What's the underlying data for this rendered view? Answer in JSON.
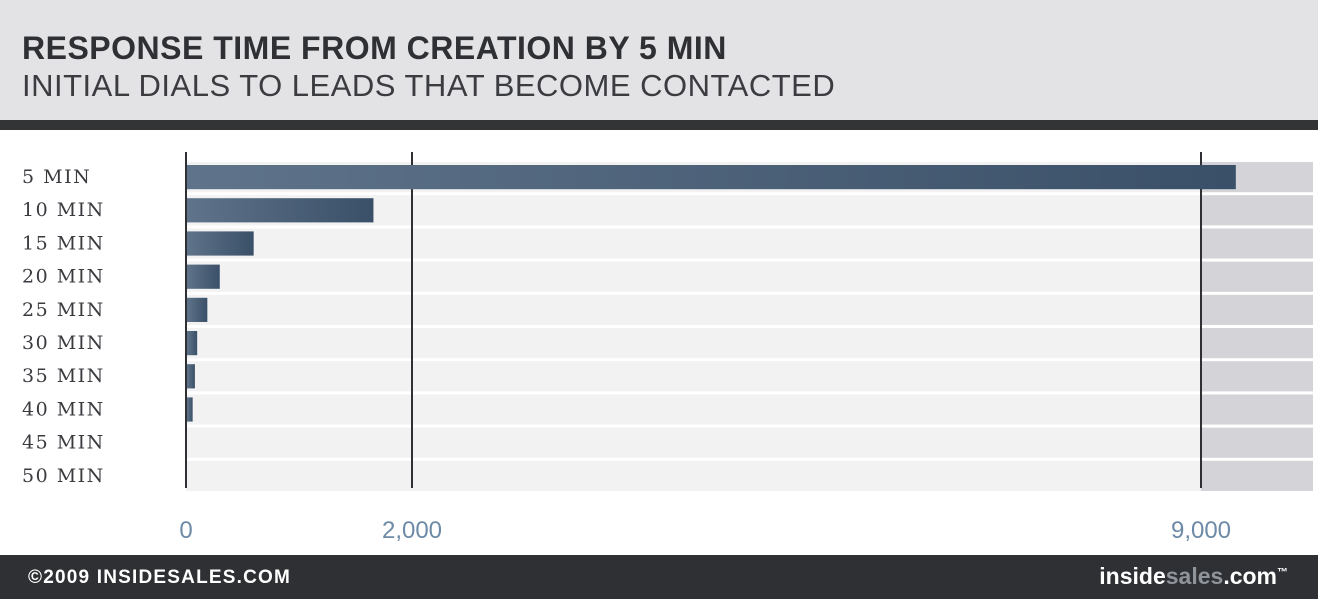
{
  "header": {
    "title": "RESPONSE TIME FROM CREATION BY 5 MIN",
    "subtitle": "INITIAL DIALS TO LEADS THAT BECOME CONTACTED"
  },
  "footer": {
    "copyright": "©2009 INSIDESALES.COM",
    "brand_part1": "inside",
    "brand_part2": "sales",
    "brand_part3": ".com",
    "brand_tm": "™"
  },
  "colors": {
    "bar_start": "#5f748a",
    "bar_end": "#3a5068",
    "row_bg": "#f2f2f3",
    "overflow_bg": "#d4d4d8",
    "header_bg": "#e3e3e5",
    "footer_bg": "#2f3033",
    "tick_text": "#6d8aa6"
  },
  "chart_data": {
    "type": "bar",
    "orientation": "horizontal",
    "title": "RESPONSE TIME FROM CREATION BY 5 MIN",
    "subtitle": "INITIAL DIALS TO LEADS THAT BECOME CONTACTED",
    "xlabel": "",
    "ylabel": "",
    "categories": [
      "5 MIN",
      "10 MIN",
      "15 MIN",
      "20 MIN",
      "25 MIN",
      "30 MIN",
      "35 MIN",
      "40 MIN",
      "45 MIN",
      "50 MIN"
    ],
    "values": [
      9300,
      1650,
      590,
      290,
      180,
      90,
      70,
      50,
      0,
      0
    ],
    "axis_ticks": [
      0,
      2000,
      9000
    ],
    "tick_labels": [
      "0",
      "2,000",
      "9,000"
    ],
    "scale_breaks": [
      [
        2000,
        9000
      ]
    ],
    "xlim": [
      0,
      9500
    ],
    "grid": true,
    "legend": "none"
  }
}
